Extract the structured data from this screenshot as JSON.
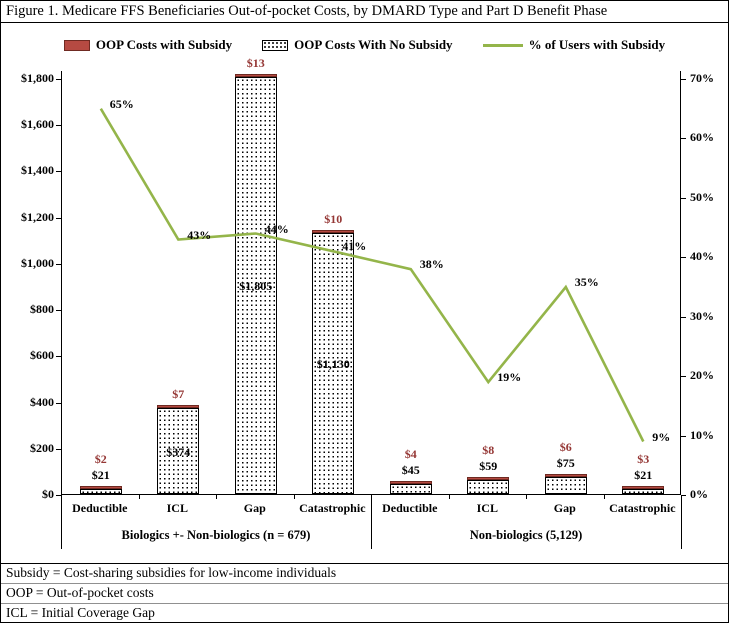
{
  "title": "Figure 1.  Medicare FFS Beneficiaries Out-of-pocket Costs, by DMARD Type and Part D Benefit Phase",
  "legend": {
    "subsidy": "OOP Costs with Subsidy",
    "no_subsidy": "OOP Costs With No Subsidy",
    "line": "% of Users with Subsidy"
  },
  "colors": {
    "subsidy_bar": "#b64a42",
    "subsidy_bar_border": "#6f2a22",
    "subsidy_label": "#953735",
    "line": "#94b54a"
  },
  "chart_data": {
    "type": "bar",
    "subtype": "stacked bars with overlaid line on secondary axis",
    "grid": false,
    "legend_position": "top",
    "categories": [
      "Deductible",
      "ICL",
      "Gap",
      "Catastrophic",
      "Deductible",
      "ICL",
      "Gap",
      "Catastrophic"
    ],
    "groups": [
      {
        "label": "Biologics +- Non-biologics (n = 679)",
        "span": 4
      },
      {
        "label": "Non-biologics  (5,129)",
        "span": 4
      }
    ],
    "series": [
      {
        "name": "OOP Costs with Subsidy",
        "type": "bar",
        "axis": "left",
        "values": [
          2,
          7,
          13,
          10,
          4,
          8,
          6,
          3
        ],
        "labels": [
          "$2",
          "$7",
          "$13",
          "$10",
          "$4",
          "$8",
          "$6",
          "$3"
        ]
      },
      {
        "name": "OOP Costs With No Subsidy",
        "type": "bar",
        "axis": "left",
        "values": [
          21,
          374,
          1805,
          1130,
          45,
          59,
          75,
          21
        ],
        "labels": [
          "$21",
          "$374",
          "$1,805",
          "$1,130",
          "$45",
          "$59",
          "$75",
          "$21"
        ]
      },
      {
        "name": "% of Users with Subsidy",
        "type": "line",
        "axis": "right",
        "values": [
          65,
          43,
          44,
          41,
          38,
          19,
          35,
          9
        ],
        "labels": [
          "65%",
          "43%",
          "44%",
          "41%",
          "38%",
          "19%",
          "35%",
          "9%"
        ]
      }
    ],
    "left_axis": {
      "min": 0,
      "max": 1800,
      "ticks": [
        "$1,800",
        "$1,600",
        "$1,400",
        "$1,200",
        "$1,000",
        "$800",
        "$600",
        "$400",
        "$200",
        "$0"
      ]
    },
    "right_axis": {
      "min": 0,
      "max": 70,
      "ticks": [
        "70%",
        "60%",
        "50%",
        "40%",
        "30%",
        "20%",
        "10%",
        "0%"
      ]
    }
  },
  "footnotes": [
    "Subsidy =  Cost-sharing subsidies for low-income individuals",
    "OOP = Out-of-pocket costs",
    "ICL = Initial Coverage Gap"
  ]
}
